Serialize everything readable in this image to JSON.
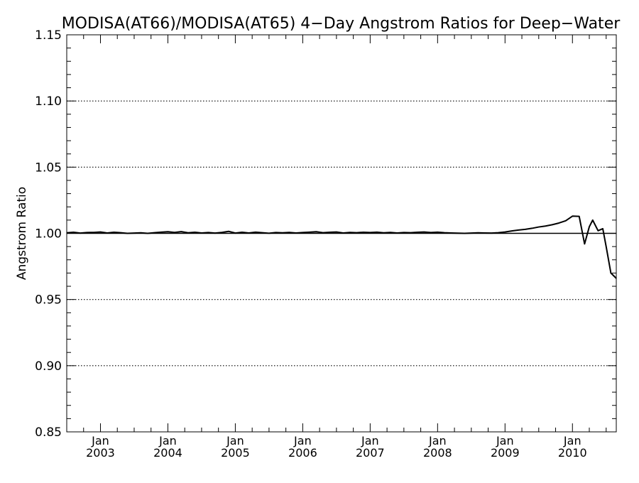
{
  "chart_data": {
    "type": "line",
    "title": "MODISA(AT66)/MODISA(AT65) 4−Day Angstrom Ratios for Deep−Water",
    "xlabel": "",
    "ylabel": "Angstrom Ratio",
    "xlim": [
      2002.5,
      2010.65
    ],
    "ylim": [
      0.85,
      1.15
    ],
    "yticks": [
      {
        "value": 0.85,
        "label": "0.85"
      },
      {
        "value": 0.9,
        "label": "0.90"
      },
      {
        "value": 0.95,
        "label": "0.95"
      },
      {
        "value": 1.0,
        "label": "1.00"
      },
      {
        "value": 1.05,
        "label": "1.05"
      },
      {
        "value": 1.1,
        "label": "1.10"
      },
      {
        "value": 1.15,
        "label": "1.15"
      }
    ],
    "xticks": [
      {
        "value": 2003,
        "month": "Jan",
        "year": "2003"
      },
      {
        "value": 2004,
        "month": "Jan",
        "year": "2004"
      },
      {
        "value": 2005,
        "month": "Jan",
        "year": "2005"
      },
      {
        "value": 2006,
        "month": "Jan",
        "year": "2006"
      },
      {
        "value": 2007,
        "month": "Jan",
        "year": "2007"
      },
      {
        "value": 2008,
        "month": "Jan",
        "year": "2008"
      },
      {
        "value": 2009,
        "month": "Jan",
        "year": "2009"
      },
      {
        "value": 2010,
        "month": "Jan",
        "year": "2010"
      }
    ],
    "dotted_gridlines": [
      0.9,
      0.95,
      1.05,
      1.1
    ],
    "reference_line": 1.0,
    "series": [
      {
        "color": "#000000",
        "x": [
          2002.5,
          2002.6,
          2002.7,
          2002.8,
          2002.9,
          2003.0,
          2003.1,
          2003.2,
          2003.3,
          2003.4,
          2003.5,
          2003.6,
          2003.7,
          2003.8,
          2003.9,
          2004.0,
          2004.1,
          2004.2,
          2004.3,
          2004.4,
          2004.5,
          2004.6,
          2004.7,
          2004.8,
          2004.9,
          2005.0,
          2005.1,
          2005.2,
          2005.3,
          2005.4,
          2005.5,
          2005.6,
          2005.7,
          2005.8,
          2005.9,
          2006.0,
          2006.1,
          2006.2,
          2006.3,
          2006.4,
          2006.5,
          2006.6,
          2006.7,
          2006.8,
          2006.9,
          2007.0,
          2007.1,
          2007.2,
          2007.3,
          2007.4,
          2007.5,
          2007.6,
          2007.7,
          2007.8,
          2007.9,
          2008.0,
          2008.1,
          2008.2,
          2008.3,
          2008.4,
          2008.5,
          2008.6,
          2008.7,
          2008.8,
          2008.9,
          2009.0,
          2009.1,
          2009.2,
          2009.3,
          2009.4,
          2009.5,
          2009.6,
          2009.7,
          2009.8,
          2009.9,
          2010.0,
          2010.1,
          2010.18,
          2010.25,
          2010.3,
          2010.38,
          2010.45,
          2010.5,
          2010.57,
          2010.65
        ],
        "y": [
          1.0004,
          1.0008,
          1.0002,
          1.0006,
          1.0007,
          1.001,
          1.0003,
          1.0008,
          1.0005,
          1.0,
          1.0002,
          1.0004,
          1.0,
          1.0005,
          1.0009,
          1.0012,
          1.0007,
          1.0013,
          1.0004,
          1.0008,
          1.0003,
          1.0006,
          1.0002,
          1.0007,
          1.0015,
          1.0002,
          1.0008,
          1.0003,
          1.0009,
          1.0005,
          1.0001,
          1.0006,
          1.0004,
          1.0007,
          1.0003,
          1.0006,
          1.0009,
          1.0012,
          1.0005,
          1.0008,
          1.001,
          1.0003,
          1.0007,
          1.0005,
          1.0008,
          1.0006,
          1.0009,
          1.0004,
          1.0007,
          1.0003,
          1.0006,
          1.0005,
          1.0008,
          1.001,
          1.0006,
          1.0009,
          1.0005,
          1.0003,
          1.0001,
          1.0,
          1.0002,
          1.0004,
          1.0003,
          1.0002,
          1.0005,
          1.001,
          1.0018,
          1.0025,
          1.003,
          1.0038,
          1.0048,
          1.0055,
          1.0065,
          1.0078,
          1.0095,
          1.013,
          1.0128,
          0.992,
          1.005,
          1.01,
          1.002,
          1.0035,
          0.99,
          0.97,
          0.966
        ]
      }
    ]
  }
}
